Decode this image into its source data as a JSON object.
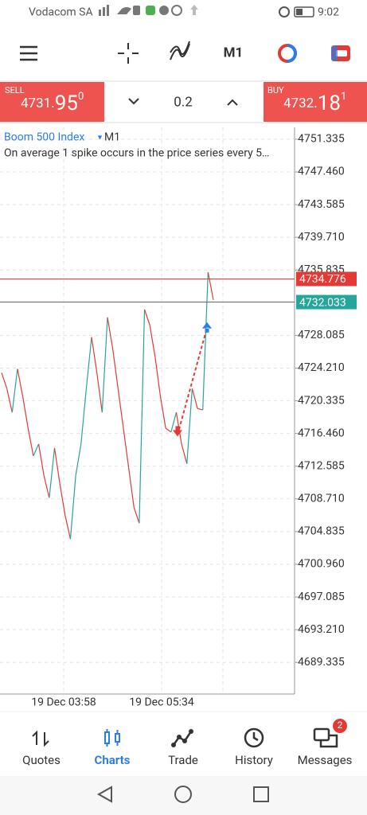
{
  "status_bar": {
    "carrier": "Vodacom SA",
    "time": "9:02"
  },
  "toolbar": {
    "timeframe": "M1"
  },
  "trade_panel": {
    "sell": {
      "label": "SELL",
      "price_main": "4731.",
      "price_big": "95",
      "price_sup": "0"
    },
    "volume": "0.2",
    "buy": {
      "label": "BUY",
      "price_main": "4732.",
      "price_big": "18",
      "price_sup": "1"
    }
  },
  "chart_data": {
    "type": "line",
    "title": "Boom 500 Index",
    "timeframe": "M1",
    "subtitle": "On average 1 spike occurs in the price series every 5…",
    "x_labels": [
      "19 Dec 03:58",
      "19 Dec 05:34"
    ],
    "values": [
      4723.66,
      4721.78,
      4718.96,
      4724.12,
      4720.84,
      4717.09,
      4713.8,
      4715.21,
      4711.46,
      4708.83,
      4714.74,
      4710.52,
      4706.77,
      4703.95,
      4711.46,
      4715.21,
      4721.78,
      4727.88,
      4723.66,
      4718.96,
      4730.22,
      4726.47,
      4721.78,
      4717.09,
      4712.4,
      4707.71,
      4705.83,
      4731.16,
      4729.29,
      4725.53,
      4720.84,
      4717.09,
      4716.62,
      4718.96,
      4715.21,
      4712.87,
      4721.78,
      4719.43,
      4719.25,
      4735.57,
      4732.29
    ],
    "up_color": "#26a69a",
    "down_color": "#e53935",
    "ylim": [
      4685.582,
      4752.742
    ],
    "yticks": [
      4751.335,
      {
        "value": 4747.46,
        "label": "4747.460"
      },
      4743.585,
      {
        "value": 4739.71,
        "label": "4739.710"
      },
      4735.835,
      4728.085,
      {
        "value": 4724.21,
        "label": "4724.210"
      },
      4720.335,
      {
        "value": 4716.46,
        "label": "4716.460"
      },
      4712.585,
      {
        "value": 4708.71,
        "label": "4708.710"
      },
      4704.835,
      {
        "value": 4700.96,
        "label": "4700.960"
      },
      4697.085,
      {
        "value": 4693.21,
        "label": "4693.210"
      },
      4689.335
    ],
    "grid": true,
    "ask_line": {
      "value": 4734.776,
      "color": "#e53935"
    },
    "bid_line": {
      "value": 4732.033,
      "color": "#26a69a"
    },
    "markers": [
      {
        "value": 4716.3,
        "color": "#e53935"
      },
      {
        "value": 4729.0,
        "color": "#2b7de9"
      }
    ]
  },
  "bottom_nav": {
    "items": [
      "Quotes",
      "Charts",
      "Trade",
      "History",
      "Messages"
    ],
    "badge": "2"
  }
}
